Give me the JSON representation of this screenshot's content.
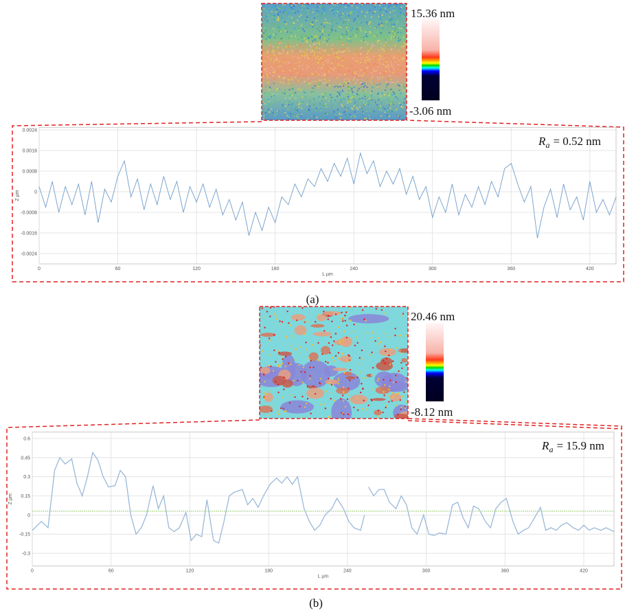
{
  "chart_data": [
    {
      "type": "line",
      "panel_label": "(a)",
      "x_label": "L µm",
      "y_label": "Z µm",
      "annotation": {
        "symbol": "R",
        "subscript": "a",
        "text": "= 0.52 nm"
      },
      "colorbar": {
        "max_label": "15.36 nm",
        "min_label": "-3.06 nm"
      },
      "color": "#6f9cc9",
      "grid": true,
      "xlim": [
        0,
        440
      ],
      "xticks": [
        0,
        60,
        120,
        180,
        240,
        300,
        360,
        420
      ],
      "ylim": [
        -0.0028,
        0.0025
      ],
      "yticks": [
        0.0024,
        0.0016,
        0.0008,
        0,
        -0.0008,
        -0.0016,
        -0.0024
      ],
      "x": [
        0,
        5,
        10,
        15,
        20,
        25,
        30,
        35,
        40,
        45,
        50,
        55,
        60,
        65,
        70,
        75,
        80,
        85,
        90,
        95,
        100,
        105,
        110,
        115,
        120,
        125,
        130,
        135,
        140,
        145,
        150,
        155,
        160,
        165,
        170,
        175,
        180,
        185,
        190,
        195,
        200,
        205,
        210,
        215,
        220,
        225,
        230,
        235,
        240,
        245,
        250,
        255,
        260,
        265,
        270,
        275,
        280,
        285,
        290,
        295,
        300,
        305,
        310,
        315,
        320,
        325,
        330,
        335,
        340,
        345,
        350,
        355,
        360,
        365,
        370,
        375,
        380,
        385,
        390,
        395,
        400,
        405,
        410,
        415,
        420,
        425,
        430,
        435,
        440
      ],
      "values": [
        0.0002,
        -0.0006,
        0.0004,
        -0.0008,
        0.0002,
        -0.0005,
        0.0003,
        -0.0009,
        0.0004,
        -0.0012,
        0.0001,
        -0.0004,
        0.0006,
        0.0012,
        -0.0002,
        0.0005,
        -0.0007,
        0.0003,
        -0.0005,
        0.0006,
        -0.0003,
        0.0004,
        -0.0008,
        0.0002,
        -0.0004,
        0.0003,
        -0.0006,
        0.0001,
        -0.0009,
        -0.0003,
        -0.0011,
        -0.0004,
        -0.0017,
        -0.0008,
        -0.0015,
        -0.0006,
        -0.0012,
        -0.0002,
        -0.0005,
        0.0003,
        -0.0002,
        0.0005,
        0.0002,
        0.0009,
        0.0004,
        0.0011,
        0.0006,
        0.0013,
        0.0003,
        0.0015,
        0.0007,
        0.0012,
        0.0002,
        0.0008,
        0.0003,
        0.0009,
        -0.0001,
        0.0006,
        -0.0003,
        0.0002,
        -0.001,
        -0.0002,
        -0.0008,
        0.0003,
        -0.0009,
        -0.0001,
        -0.0006,
        0.0002,
        -0.0005,
        0.0004,
        -0.0002,
        0.0009,
        0.0011,
        0.0003,
        -0.0004,
        0.0002,
        -0.0018,
        -0.0006,
        0.0001,
        -0.001,
        0.0003,
        -0.0007,
        -0.0002,
        -0.0011,
        0.0004,
        -0.0008,
        -0.0003,
        -0.0009,
        -0.0002
      ]
    },
    {
      "type": "line",
      "panel_label": "(b)",
      "x_label": "L µm",
      "y_label": "Z µm",
      "annotation": {
        "symbol": "R",
        "subscript": "a",
        "text": "= 15.9 nm"
      },
      "colorbar": {
        "max_label": "20.46 nm",
        "min_label": "-8.12 nm"
      },
      "color": "#9ab8d8",
      "grid": true,
      "reference_line": 0.03,
      "reference_color": "#9ccc70",
      "xlim": [
        0,
        443
      ],
      "xticks": [
        0,
        60,
        120,
        180,
        240,
        300,
        360,
        420
      ],
      "ylim": [
        -0.4,
        0.65
      ],
      "yticks": [
        0.6,
        0.45,
        0.3,
        0.15,
        0,
        -0.15,
        -0.3
      ],
      "x": [
        0,
        7,
        12,
        17,
        21,
        25,
        30,
        34,
        38,
        42,
        46,
        50,
        54,
        58,
        63,
        67,
        71,
        75,
        79,
        83,
        87,
        92,
        96,
        100,
        104,
        108,
        112,
        117,
        121,
        125,
        129,
        133,
        138,
        142,
        146,
        150,
        154,
        160,
        164,
        168,
        172,
        176,
        181,
        186,
        190,
        194,
        198,
        202,
        207,
        211,
        215,
        219,
        223,
        228,
        232,
        237,
        241,
        245,
        250,
        253,
        254,
        256,
        260,
        264,
        268,
        272,
        277,
        281,
        285,
        289,
        293,
        298,
        302,
        306,
        310,
        315,
        320,
        324,
        328,
        332,
        336,
        340,
        345,
        349,
        353,
        357,
        361,
        366,
        370,
        374,
        378,
        382,
        387,
        391,
        395,
        399,
        403,
        407,
        412,
        416,
        420,
        424,
        428,
        433,
        437,
        443
      ],
      "values": [
        -0.12,
        -0.05,
        -0.1,
        0.35,
        0.45,
        0.4,
        0.44,
        0.25,
        0.15,
        0.3,
        0.49,
        0.43,
        0.3,
        0.22,
        0.23,
        0.35,
        0.3,
        0.0,
        -0.15,
        -0.1,
        0.0,
        0.23,
        0.05,
        0.15,
        -0.1,
        -0.13,
        -0.1,
        0.02,
        -0.2,
        -0.15,
        -0.17,
        0.12,
        -0.2,
        -0.22,
        -0.05,
        0.15,
        0.18,
        0.2,
        0.08,
        0.13,
        0.06,
        0.15,
        0.24,
        0.29,
        0.25,
        0.3,
        0.24,
        0.3,
        0.05,
        -0.05,
        -0.12,
        -0.08,
        0.0,
        0.05,
        0.13,
        0.05,
        -0.05,
        -0.1,
        -0.12,
        0.0,
        null,
        0.22,
        0.15,
        0.2,
        0.2,
        0.1,
        0.05,
        0.15,
        0.08,
        -0.1,
        -0.15,
        0.0,
        -0.15,
        -0.16,
        -0.14,
        -0.15,
        0.08,
        0.1,
        -0.02,
        -0.1,
        0.07,
        0.05,
        -0.05,
        -0.1,
        0.05,
        0.1,
        0.13,
        -0.05,
        -0.15,
        -0.12,
        -0.1,
        -0.03,
        0.06,
        -0.12,
        -0.1,
        -0.12,
        -0.08,
        -0.06,
        -0.1,
        -0.12,
        -0.08,
        -0.12,
        -0.1,
        -0.12,
        -0.1,
        -0.13
      ]
    }
  ]
}
